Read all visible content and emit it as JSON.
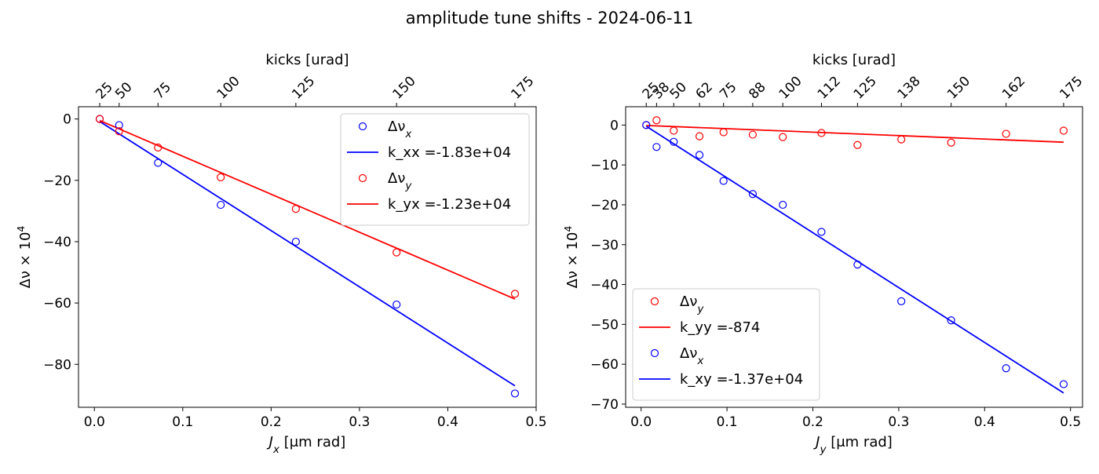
{
  "title": "amplitude tune shifts - 2024-06-11",
  "chart_data": [
    {
      "type": "scatter",
      "panel": "left",
      "xlabel": "J_x [μm rad]",
      "xlabel_main": "J",
      "xlabel_sub": "x",
      "xlabel_unit": " [μm rad]",
      "ylabel": "Δν × 10^4",
      "top_xlabel": "kicks [urad]",
      "xlim": [
        -0.018,
        0.5
      ],
      "ylim": [
        -94,
        4
      ],
      "xticks": [
        0,
        0.1,
        0.2,
        0.3,
        0.4,
        0.5
      ],
      "xtick_labels": [
        "0.0",
        "0.1",
        "0.2",
        "0.3",
        "0.4",
        "0.5"
      ],
      "yticks": [
        0,
        -20,
        -40,
        -60,
        -80
      ],
      "ytick_labels": [
        "0",
        "−20",
        "−40",
        "−60",
        "−80"
      ],
      "top_ticks": [
        {
          "x": 0.006,
          "label": "25"
        },
        {
          "x": 0.028,
          "label": "50"
        },
        {
          "x": 0.072,
          "label": "75"
        },
        {
          "x": 0.143,
          "label": "100"
        },
        {
          "x": 0.228,
          "label": "125"
        },
        {
          "x": 0.342,
          "label": "150"
        },
        {
          "x": 0.476,
          "label": "175"
        }
      ],
      "legend_position": "upper right",
      "series": [
        {
          "name": "Δν_x",
          "legend_main": "Δν",
          "legend_sub": "x",
          "kind": "markers",
          "color": "#0000ff",
          "x": [
            0.006,
            0.028,
            0.072,
            0.143,
            0.228,
            0.342,
            0.476
          ],
          "y": [
            0,
            -2,
            -14.3,
            -28,
            -40,
            -60.5,
            -89.5
          ]
        },
        {
          "name": "k_xx =-1.83e+04",
          "kind": "line",
          "color": "#0000ff",
          "x": [
            0.006,
            0.476
          ],
          "y": [
            -0.8,
            -87
          ]
        },
        {
          "name": "Δν_y",
          "legend_main": "Δν",
          "legend_sub": "y",
          "kind": "markers",
          "color": "#ff0000",
          "x": [
            0.006,
            0.028,
            0.072,
            0.143,
            0.228,
            0.342,
            0.476
          ],
          "y": [
            0,
            -4,
            -9.3,
            -19,
            -29.3,
            -43.5,
            -57
          ]
        },
        {
          "name": "k_yx =-1.23e+04",
          "kind": "line",
          "color": "#ff0000",
          "x": [
            0.006,
            0.476
          ],
          "y": [
            -0.5,
            -58.7
          ]
        }
      ]
    },
    {
      "type": "scatter",
      "panel": "right",
      "xlabel": "J_y [μm rad]",
      "xlabel_main": "J",
      "xlabel_sub": "y",
      "xlabel_unit": " [μm rad]",
      "ylabel": "Δν × 10^4",
      "top_xlabel": "kicks [urad]",
      "xlim": [
        -0.018,
        0.514
      ],
      "ylim": [
        -70.8,
        4.6
      ],
      "xticks": [
        0,
        0.1,
        0.2,
        0.3,
        0.4,
        0.5
      ],
      "xtick_labels": [
        "0.0",
        "0.1",
        "0.2",
        "0.3",
        "0.4",
        "0.5"
      ],
      "yticks": [
        0,
        -10,
        -20,
        -30,
        -40,
        -50,
        -60,
        -70
      ],
      "ytick_labels": [
        "0",
        "−10",
        "−20",
        "−30",
        "−40",
        "−50",
        "−60",
        "−70"
      ],
      "top_ticks": [
        {
          "x": 0.006,
          "label": "25"
        },
        {
          "x": 0.018,
          "label": "38"
        },
        {
          "x": 0.038,
          "label": "50"
        },
        {
          "x": 0.068,
          "label": "62"
        },
        {
          "x": 0.096,
          "label": "75"
        },
        {
          "x": 0.13,
          "label": "88"
        },
        {
          "x": 0.165,
          "label": "100"
        },
        {
          "x": 0.21,
          "label": "112"
        },
        {
          "x": 0.252,
          "label": "125"
        },
        {
          "x": 0.303,
          "label": "138"
        },
        {
          "x": 0.361,
          "label": "150"
        },
        {
          "x": 0.425,
          "label": "162"
        },
        {
          "x": 0.492,
          "label": "175"
        }
      ],
      "legend_position": "lower left",
      "series": [
        {
          "name": "Δν_y",
          "legend_main": "Δν",
          "legend_sub": "y",
          "kind": "markers",
          "color": "#ff0000",
          "x": [
            0.006,
            0.018,
            0.038,
            0.068,
            0.096,
            0.13,
            0.165,
            0.21,
            0.252,
            0.303,
            0.361,
            0.425,
            0.492
          ],
          "y": [
            0,
            1.2,
            -1.4,
            -2.8,
            -1.8,
            -2.4,
            -3,
            -2,
            -5,
            -3.6,
            -4.4,
            -2.2,
            -1.4
          ]
        },
        {
          "name": "k_yy =-874",
          "kind": "line",
          "color": "#ff0000",
          "x": [
            0.006,
            0.492
          ],
          "y": [
            -0.1,
            -4.3
          ]
        },
        {
          "name": "Δν_x",
          "legend_main": "Δν",
          "legend_sub": "x",
          "kind": "markers",
          "color": "#0000ff",
          "x": [
            0.006,
            0.018,
            0.038,
            0.068,
            0.096,
            0.13,
            0.165,
            0.21,
            0.252,
            0.303,
            0.361,
            0.425,
            0.492
          ],
          "y": [
            0,
            -5.5,
            -4.2,
            -7.5,
            -14,
            -17.3,
            -20,
            -26.8,
            -35,
            -44.2,
            -49,
            -61,
            -65
          ]
        },
        {
          "name": "k_xy =-1.37e+04",
          "kind": "line",
          "color": "#0000ff",
          "x": [
            0.006,
            0.492
          ],
          "y": [
            -0.3,
            -67.2
          ]
        }
      ]
    }
  ]
}
